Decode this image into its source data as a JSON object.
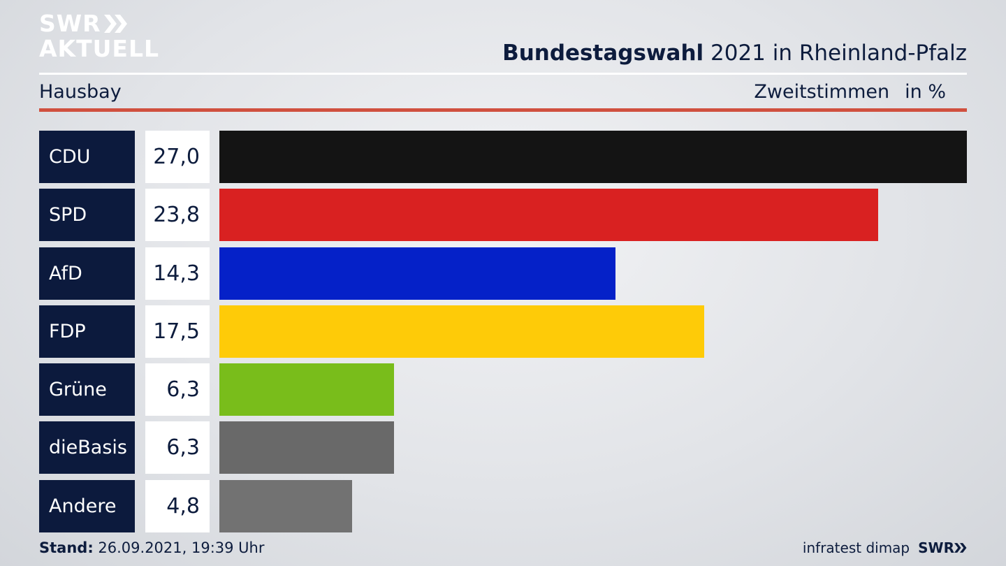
{
  "brand": {
    "line1": "SWR",
    "line2": "AKTUELL"
  },
  "header": {
    "title_bold": "Bundestagswahl",
    "title_rest": " 2021 in Rheinland-Pfalz"
  },
  "subheader": {
    "region": "Hausbay",
    "measure": "Zweitstimmen",
    "unit": "in %"
  },
  "colors": {
    "accent_red_rule": "#d0503f",
    "label_bg": "#0c1a3d"
  },
  "chart_data": {
    "type": "bar",
    "orientation": "horizontal",
    "categories": [
      "CDU",
      "SPD",
      "AfD",
      "FDP",
      "Grüne",
      "dieBasis",
      "Andere"
    ],
    "values": [
      27.0,
      23.8,
      14.3,
      17.5,
      6.3,
      6.3,
      4.8
    ],
    "value_labels": [
      "27,0",
      "23,8",
      "14,3",
      "17,5",
      "6,3",
      "6,3",
      "4,8"
    ],
    "colors": [
      "#141414",
      "#d92121",
      "#0521c8",
      "#fecb08",
      "#79bd1b",
      "#696969",
      "#727272"
    ],
    "xlim": [
      0,
      27.0
    ]
  },
  "footer": {
    "stand_label": "Stand:",
    "stand_value": " 26.09.2021, 19:39 Uhr",
    "source": "infratest dimap",
    "brand": "SWR"
  }
}
